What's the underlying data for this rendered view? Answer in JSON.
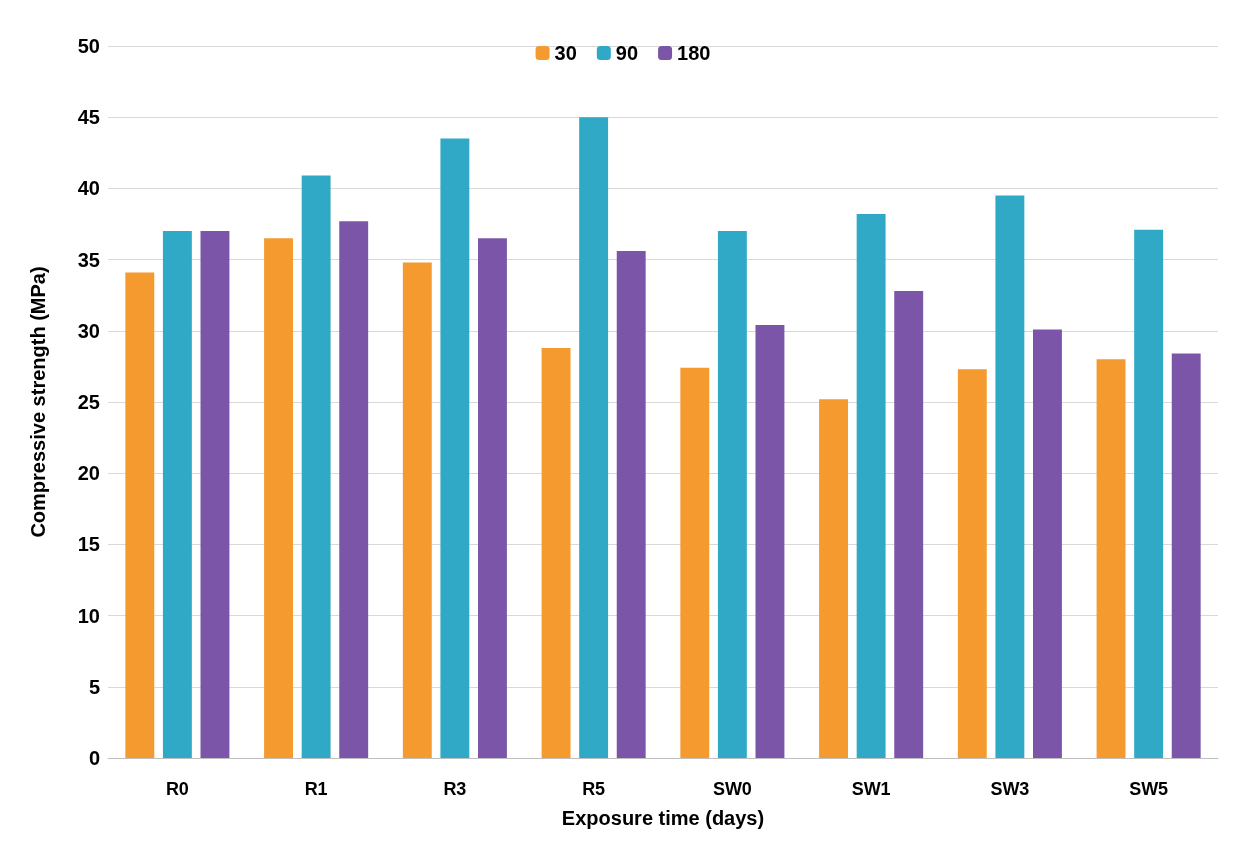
{
  "chart_data": {
    "type": "bar",
    "xlabel": "Exposure time (days)",
    "ylabel": "Compressive strength (MPa)",
    "categories": [
      "R0",
      "R1",
      "R3",
      "R5",
      "SW0",
      "SW1",
      "SW3",
      "SW5"
    ],
    "series": [
      {
        "name": "30",
        "color": "#f49a2e",
        "values": [
          34.1,
          36.5,
          34.8,
          28.8,
          27.4,
          25.2,
          27.3,
          28.0
        ]
      },
      {
        "name": "90",
        "color": "#2fa9c6",
        "values": [
          37.0,
          40.9,
          43.5,
          45.0,
          37.0,
          38.2,
          39.5,
          37.1
        ]
      },
      {
        "name": "180",
        "color": "#7b56a8",
        "values": [
          37.0,
          37.7,
          36.5,
          35.6,
          30.4,
          32.8,
          30.1,
          28.4
        ]
      }
    ],
    "ylim": [
      0,
      50
    ],
    "yticks": [
      0,
      5,
      10,
      15,
      20,
      25,
      30,
      35,
      40,
      45,
      50
    ],
    "grid": "y",
    "legend": "top"
  }
}
